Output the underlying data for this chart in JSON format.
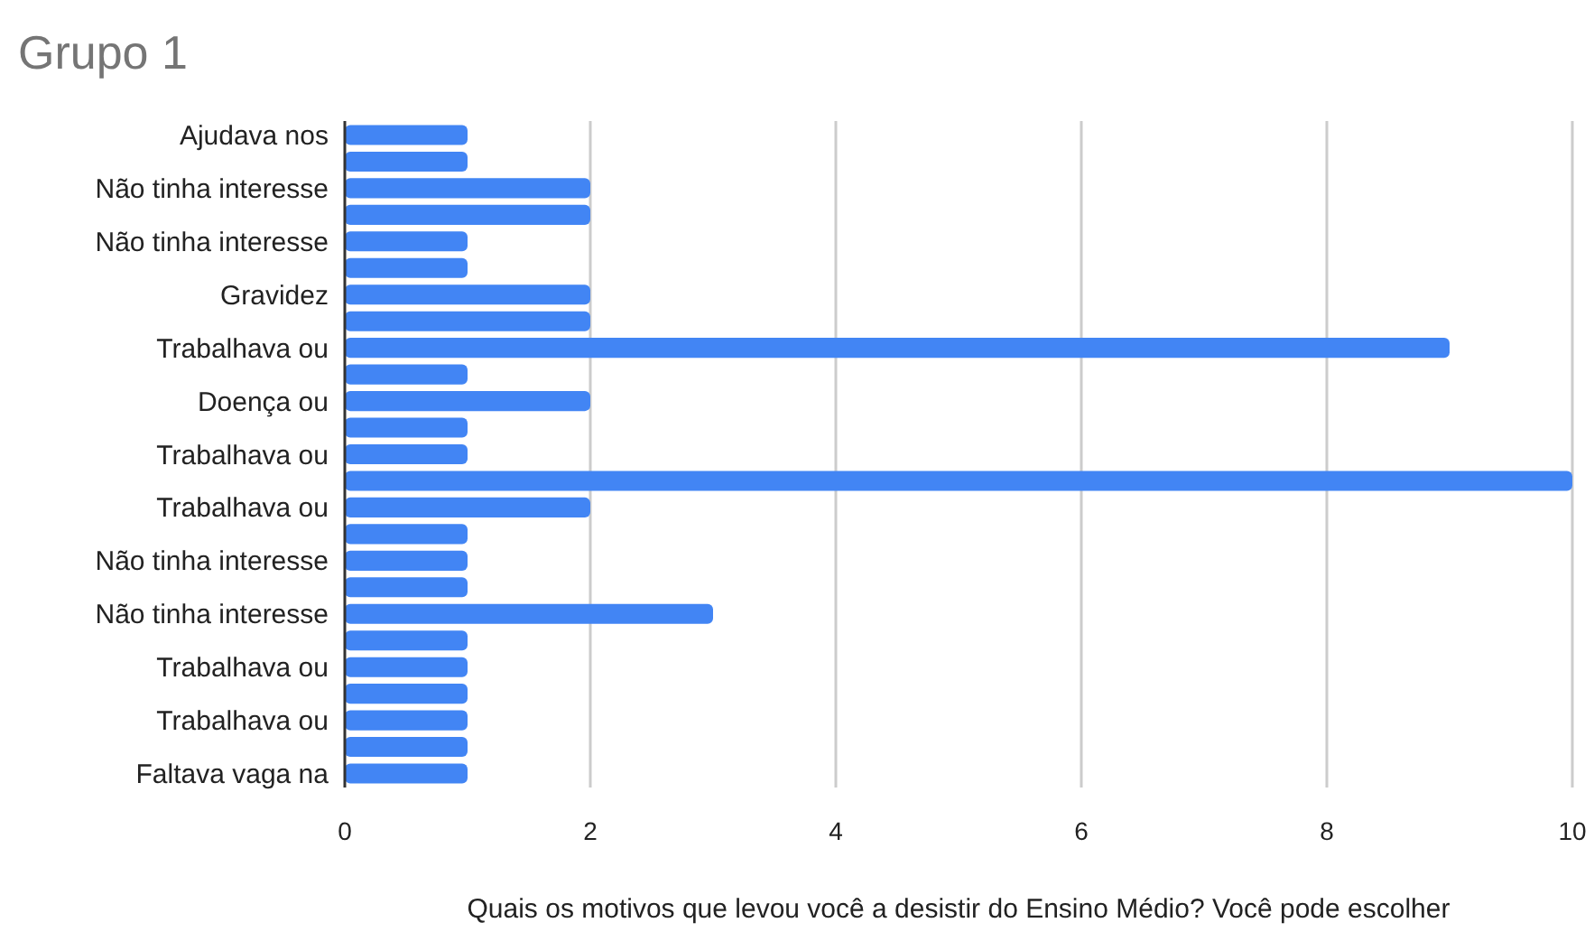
{
  "chart_data": {
    "type": "bar",
    "orientation": "horizontal",
    "title": "Grupo 1",
    "xlabel": "Quais os motivos que levou você a desistir do Ensino Médio? Você pode escolher",
    "categories": [
      "Ajudava nos",
      null,
      "Não tinha interesse",
      null,
      "Não tinha interesse",
      null,
      "Gravidez",
      null,
      "Trabalhava ou",
      null,
      "Doença ou",
      null,
      "Trabalhava ou",
      null,
      "Trabalhava ou",
      null,
      "Não tinha interesse",
      null,
      "Não tinha interesse",
      null,
      "Trabalhava ou",
      null,
      "Trabalhava ou",
      null,
      "Faltava vaga na"
    ],
    "values": [
      1,
      1,
      2,
      2,
      1,
      1,
      2,
      2,
      9,
      1,
      2,
      1,
      1,
      10,
      2,
      1,
      1,
      1,
      3,
      1,
      1,
      1,
      1,
      1,
      1
    ],
    "color": "#4285f4",
    "xlim": [
      0,
      10
    ],
    "xticks": [
      0,
      2,
      4,
      6,
      8,
      10
    ],
    "grid": "x"
  }
}
